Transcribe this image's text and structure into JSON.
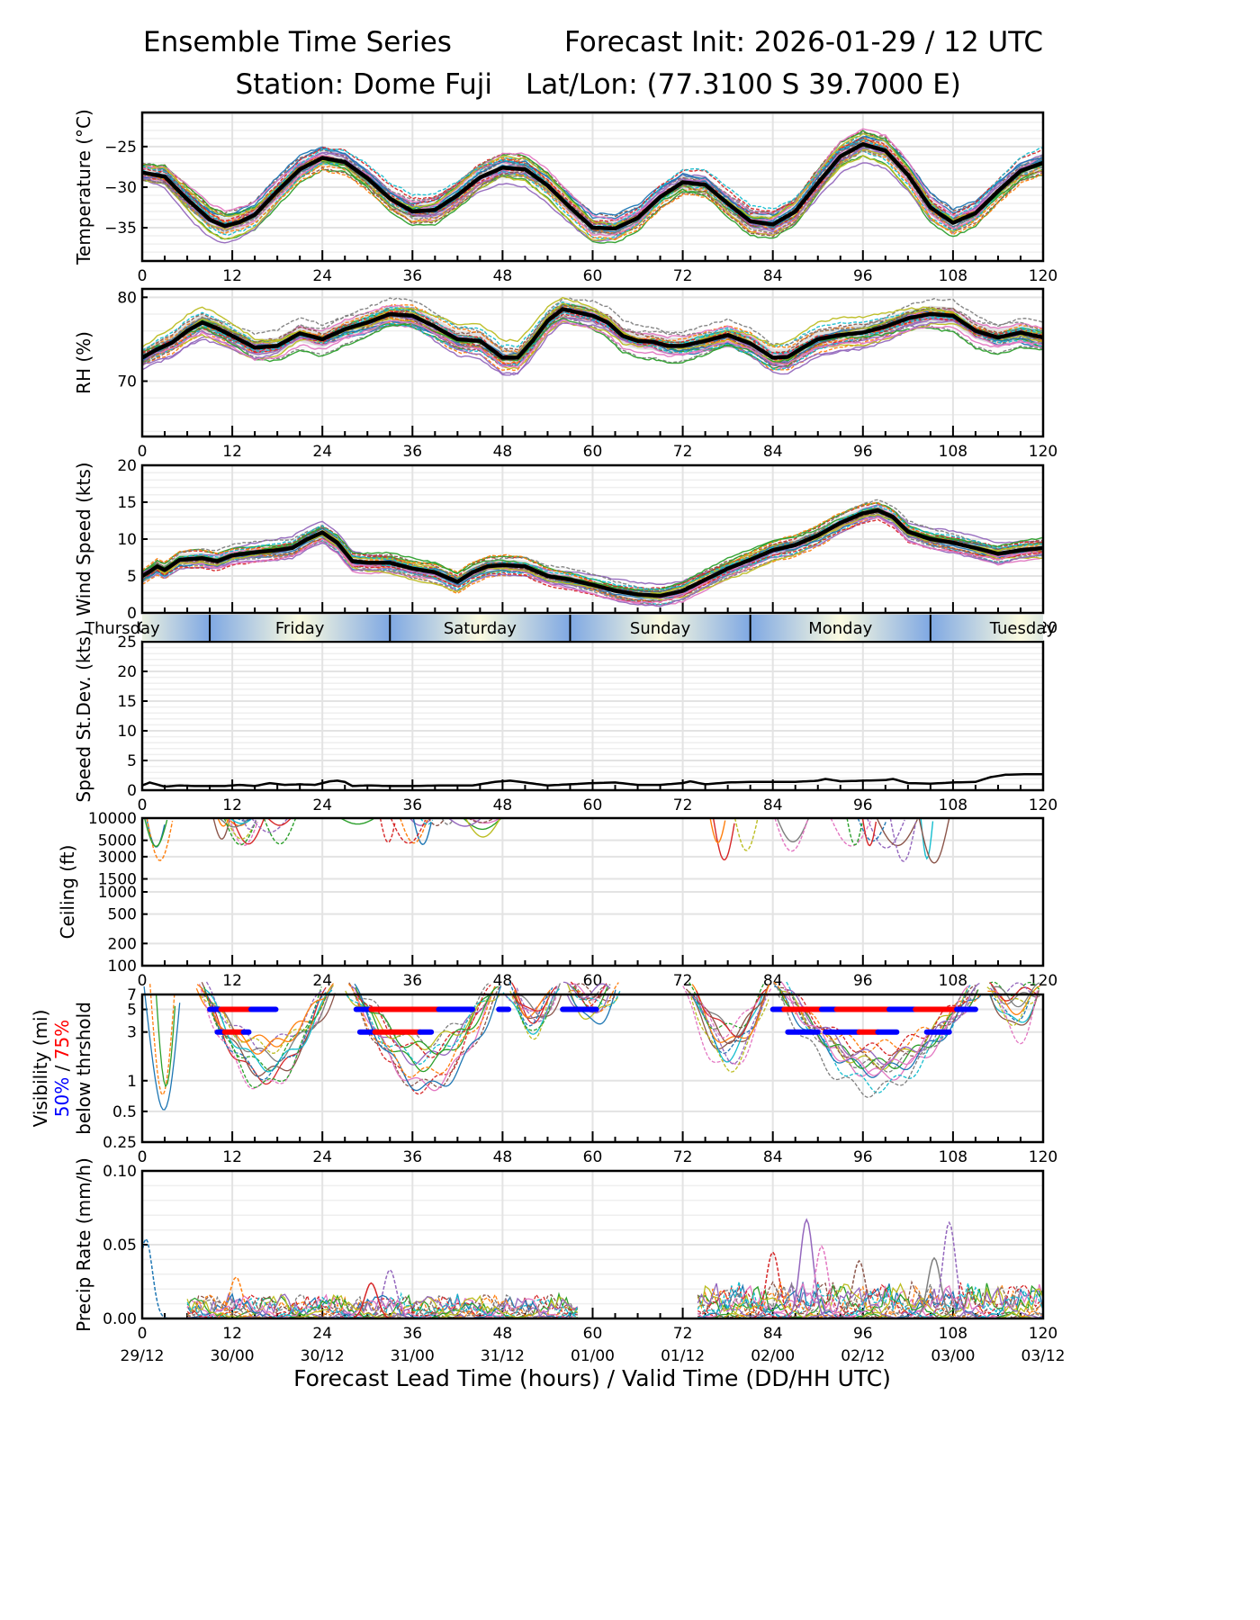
{
  "header": {
    "title_left": "Ensemble Time Series",
    "title_right": "Forecast Init: 2026-01-29 / 12 UTC",
    "station": "Station: Dome Fuji",
    "latlon": "Lat/Lon: (77.3100 S 39.7000 E)"
  },
  "xaxis": {
    "label": "Forecast Lead Time (hours) / Valid Time (DD/HH UTC)",
    "range": [
      0,
      120
    ],
    "ticks": [
      0,
      12,
      24,
      36,
      48,
      60,
      72,
      84,
      96,
      108,
      120
    ],
    "tick_labels": [
      "0",
      "12",
      "24",
      "36",
      "48",
      "60",
      "72",
      "84",
      "96",
      "108",
      "120"
    ],
    "valid_time_labels": [
      "29/12",
      "30/00",
      "30/12",
      "31/00",
      "31/12",
      "01/00",
      "01/12",
      "02/00",
      "02/12",
      "03/00",
      "03/12"
    ]
  },
  "day_band": {
    "days": [
      {
        "label": "Thursday",
        "start": -12,
        "end": 9
      },
      {
        "label": "Friday",
        "start": 9,
        "end": 33
      },
      {
        "label": "Saturday",
        "start": 33,
        "end": 57
      },
      {
        "label": "Sunday",
        "start": 57,
        "end": 81
      },
      {
        "label": "Monday",
        "start": 81,
        "end": 105
      },
      {
        "label": "Tuesday",
        "start": 105,
        "end": 129
      }
    ],
    "night_color": "#7fa8e3",
    "day_color": "#fbfbe0"
  },
  "colors": {
    "mean": "#000000",
    "spread": "#d9d9d9",
    "members": [
      "#1f77b4",
      "#ff7f0e",
      "#2ca02c",
      "#d62728",
      "#9467bd",
      "#8c564b",
      "#e377c2",
      "#7f7f7f",
      "#bcbd22",
      "#17becf"
    ],
    "vis_50": "#0000ff",
    "vis_75": "#ff0000"
  },
  "chart_data": [
    {
      "id": "temperature",
      "type": "line",
      "title": "",
      "ylabel": "Temperature (°C)",
      "xlabel": "",
      "ylim": [
        -39.1,
        -20.8
      ],
      "yticks": [
        -35,
        -30,
        -25
      ],
      "ytick_labels": [
        "−35",
        "−30",
        "−25"
      ],
      "grid": true,
      "ensemble_members": 30,
      "series": [
        {
          "name": "ensemble mean",
          "x": [
            0,
            3,
            6,
            9,
            11,
            13,
            15,
            18,
            21,
            24,
            27,
            30,
            33,
            36,
            39,
            42,
            45,
            48,
            51,
            54,
            57,
            60,
            63,
            66,
            69,
            72,
            75,
            78,
            81,
            84,
            87,
            90,
            93,
            96,
            99,
            102,
            105,
            108,
            111,
            114,
            117,
            120
          ],
          "values": [
            -28.2,
            -28.7,
            -31.5,
            -34.0,
            -34.8,
            -34.3,
            -33.4,
            -30.5,
            -27.8,
            -26.4,
            -26.9,
            -28.9,
            -31.4,
            -33.0,
            -32.8,
            -31.0,
            -28.8,
            -27.6,
            -27.8,
            -29.8,
            -32.5,
            -35.0,
            -35.1,
            -33.8,
            -31.2,
            -29.4,
            -29.7,
            -32.0,
            -34.2,
            -34.6,
            -33.0,
            -29.5,
            -26.2,
            -24.7,
            -25.5,
            -28.5,
            -32.5,
            -34.4,
            -33.2,
            -30.5,
            -28.0,
            -27.0
          ]
        }
      ],
      "spread_halfwidth": 1.0
    },
    {
      "id": "rh",
      "type": "line",
      "ylabel": "RH (%)",
      "ylim": [
        63.4,
        81.0
      ],
      "yticks": [
        70,
        80
      ],
      "ytick_labels": [
        "70",
        "80"
      ],
      "grid": true,
      "series": [
        {
          "name": "ensemble mean",
          "x": [
            0,
            2,
            4,
            6,
            8,
            10,
            12,
            15,
            18,
            21,
            24,
            27,
            30,
            33,
            36,
            39,
            42,
            45,
            48,
            50,
            52,
            54,
            56,
            58,
            60,
            62,
            64,
            66,
            68,
            70,
            72,
            75,
            78,
            81,
            84,
            86,
            88,
            90,
            93,
            96,
            99,
            102,
            105,
            108,
            111,
            114,
            117,
            120
          ],
          "values": [
            72.8,
            73.8,
            74.6,
            76.0,
            77.0,
            76.3,
            75.4,
            74.0,
            74.2,
            75.7,
            75.0,
            76.2,
            77.0,
            78.0,
            77.8,
            76.5,
            75.0,
            74.8,
            72.8,
            72.8,
            74.8,
            77.2,
            78.6,
            78.2,
            77.8,
            77.0,
            75.4,
            74.8,
            74.7,
            74.2,
            74.2,
            74.8,
            75.5,
            74.5,
            72.8,
            72.9,
            74.0,
            75.0,
            75.5,
            75.8,
            76.5,
            77.5,
            78.0,
            77.8,
            76.0,
            75.2,
            75.8,
            75.2
          ]
        }
      ],
      "spread_halfwidth": 1.0
    },
    {
      "id": "wind_speed",
      "type": "line",
      "ylabel": "Wind Speed (kts)",
      "ylim": [
        0,
        20
      ],
      "yticks": [
        0,
        5,
        10,
        15,
        20
      ],
      "ytick_labels": [
        "0",
        "5",
        "10",
        "15",
        "20"
      ],
      "grid": true,
      "series": [
        {
          "name": "ensemble mean",
          "x": [
            0,
            1,
            2,
            3,
            5,
            8,
            10,
            12,
            15,
            18,
            20,
            22,
            24,
            26,
            28,
            30,
            33,
            36,
            39,
            42,
            44,
            46,
            48,
            51,
            54,
            57,
            60,
            63,
            66,
            69,
            72,
            75,
            78,
            81,
            84,
            87,
            90,
            93,
            96,
            98,
            100,
            102,
            105,
            108,
            111,
            114,
            117,
            120
          ],
          "values": [
            5.0,
            5.6,
            6.3,
            5.8,
            7.2,
            7.4,
            7.0,
            7.8,
            8.2,
            8.5,
            8.8,
            10.0,
            10.9,
            9.5,
            7.0,
            6.8,
            6.8,
            6.0,
            5.5,
            4.2,
            5.5,
            6.3,
            6.5,
            6.3,
            5.0,
            4.5,
            3.8,
            3.0,
            2.5,
            2.3,
            3.0,
            4.5,
            6.0,
            7.2,
            8.5,
            9.2,
            10.5,
            12.2,
            13.5,
            13.9,
            13.0,
            11.0,
            10.0,
            9.5,
            8.8,
            8.0,
            8.5,
            8.8
          ]
        }
      ],
      "spread_halfwidth": 0.8
    },
    {
      "id": "speed_stdev",
      "type": "line",
      "ylabel": "Speed St.Dev. (kts)",
      "ylim": [
        0,
        25
      ],
      "yticks": [
        0,
        5,
        10,
        15,
        20,
        25
      ],
      "ytick_labels": [
        "0",
        "5",
        "10",
        "15",
        "20",
        "25"
      ],
      "grid": true,
      "series": [
        {
          "name": "speed standard deviation",
          "x": [
            0,
            1,
            3,
            5,
            7,
            9,
            11,
            13,
            15,
            17,
            19,
            21,
            23,
            25,
            26,
            27,
            28,
            30,
            33,
            36,
            40,
            44,
            47,
            49,
            51,
            54,
            57,
            60,
            63,
            66,
            69,
            72,
            73,
            75,
            78,
            81,
            84,
            87,
            90,
            91,
            93,
            96,
            99,
            100,
            102,
            105,
            108,
            111,
            113,
            115,
            118,
            120
          ],
          "values": [
            0.8,
            1.3,
            0.6,
            0.8,
            0.7,
            0.7,
            0.7,
            0.9,
            0.7,
            1.2,
            0.9,
            1.0,
            0.9,
            1.5,
            1.6,
            1.4,
            0.7,
            0.8,
            0.7,
            0.7,
            0.8,
            0.8,
            1.4,
            1.6,
            1.3,
            0.8,
            1.0,
            1.2,
            1.3,
            0.9,
            0.9,
            1.2,
            1.5,
            1.0,
            1.3,
            1.4,
            1.4,
            1.4,
            1.6,
            1.9,
            1.5,
            1.6,
            1.7,
            1.9,
            1.2,
            1.1,
            1.3,
            1.4,
            2.2,
            2.6,
            2.7,
            2.7
          ]
        }
      ]
    },
    {
      "id": "ceiling",
      "type": "line",
      "ylabel": "Ceiling (ft)",
      "yscale": "log",
      "ylim": [
        100,
        10000
      ],
      "yticks": [
        100,
        200,
        500,
        1000,
        1500,
        3000,
        5000,
        10000
      ],
      "ytick_labels": [
        "100",
        "200",
        "500",
        "1000",
        "1500",
        "3000",
        "5000",
        "10000"
      ],
      "grid": true,
      "events": [
        {
          "name": "early dip",
          "x_range": [
            0,
            3
          ],
          "min_value": 2200
        },
        {
          "name": "hour 12 cluster",
          "x_range": [
            9,
            19
          ],
          "min_value": 4200
        },
        {
          "name": "hour 30 cluster",
          "x_range": [
            26,
            48
          ],
          "min_value": 4000
        },
        {
          "name": "hour 84-108 cluster",
          "x_range": [
            74,
            109
          ],
          "min_value": 2300
        }
      ]
    },
    {
      "id": "visibility",
      "type": "line",
      "ylabel": "Visibility (mi)",
      "ylabel_line2_blue": "50%",
      "ylabel_line2_sep": " / ",
      "ylabel_line2_red": "75%",
      "ylabel_line3": "below thrshold",
      "yscale": "log",
      "ylim": [
        0.25,
        7
      ],
      "yticks": [
        0.25,
        0.5,
        1,
        3,
        5,
        7
      ],
      "ytick_labels": [
        "0.25",
        "0.5",
        "1",
        "3",
        "5",
        "7"
      ],
      "grid": true,
      "threshold_bars": [
        {
          "threshold": 5,
          "segments": [
            {
              "start": 9.0,
              "end": 10.5,
              "level": "50%"
            },
            {
              "start": 10.5,
              "end": 14.5,
              "level": "75%"
            },
            {
              "start": 14.5,
              "end": 17.8,
              "level": "50%"
            },
            {
              "start": 28.5,
              "end": 30.5,
              "level": "50%"
            },
            {
              "start": 30.5,
              "end": 39.5,
              "level": "75%"
            },
            {
              "start": 39.5,
              "end": 44.0,
              "level": "50%"
            },
            {
              "start": 47.5,
              "end": 48.8,
              "level": "50%"
            },
            {
              "start": 56.0,
              "end": 60.5,
              "level": "50%"
            },
            {
              "start": 84.0,
              "end": 85.5,
              "level": "50%"
            },
            {
              "start": 85.5,
              "end": 90.5,
              "level": "75%"
            },
            {
              "start": 90.5,
              "end": 92.5,
              "level": "50%"
            },
            {
              "start": 92.5,
              "end": 99.5,
              "level": "75%"
            },
            {
              "start": 99.5,
              "end": 103.0,
              "level": "50%"
            },
            {
              "start": 103.0,
              "end": 108.5,
              "level": "75%"
            },
            {
              "start": 108.5,
              "end": 111.0,
              "level": "50%"
            }
          ]
        },
        {
          "threshold": 3,
          "segments": [
            {
              "start": 10.0,
              "end": 11.0,
              "level": "50%"
            },
            {
              "start": 11.0,
              "end": 13.5,
              "level": "75%"
            },
            {
              "start": 13.5,
              "end": 14.2,
              "level": "50%"
            },
            {
              "start": 29.0,
              "end": 31.0,
              "level": "50%"
            },
            {
              "start": 31.0,
              "end": 37.0,
              "level": "75%"
            },
            {
              "start": 37.0,
              "end": 38.5,
              "level": "50%"
            },
            {
              "start": 86.0,
              "end": 90.0,
              "level": "50%"
            },
            {
              "start": 91.0,
              "end": 92.2,
              "level": "50%"
            },
            {
              "start": 92.5,
              "end": 95.5,
              "level": "50%"
            },
            {
              "start": 95.5,
              "end": 98.0,
              "level": "75%"
            },
            {
              "start": 98.0,
              "end": 100.5,
              "level": "50%"
            },
            {
              "start": 104.5,
              "end": 107.5,
              "level": "50%"
            }
          ]
        }
      ]
    },
    {
      "id": "precip_rate",
      "type": "line",
      "ylabel": "Precip Rate (mm/h)",
      "ylim": [
        0,
        0.1
      ],
      "yticks": [
        0.0,
        0.05,
        0.1
      ],
      "ytick_labels": [
        "0.00",
        "0.05",
        "0.10"
      ],
      "grid": true,
      "peaks": [
        {
          "x": 0.5,
          "value": 0.054,
          "member_color": "#1f77b4",
          "dashed": true
        },
        {
          "x": 12.5,
          "value": 0.028,
          "member_color": "#ff7f0e",
          "dashed": true
        },
        {
          "x": 33.0,
          "value": 0.033,
          "member_color": "#9467bd",
          "dashed": true
        },
        {
          "x": 30.5,
          "value": 0.024,
          "member_color": "#d62728",
          "dashed": false
        },
        {
          "x": 84.0,
          "value": 0.045,
          "member_color": "#d62728",
          "dashed": true
        },
        {
          "x": 88.5,
          "value": 0.067,
          "member_color": "#9467bd",
          "dashed": false
        },
        {
          "x": 90.5,
          "value": 0.049,
          "member_color": "#e377c2",
          "dashed": true
        },
        {
          "x": 95.5,
          "value": 0.039,
          "member_color": "#8c564b",
          "dashed": true
        },
        {
          "x": 105.5,
          "value": 0.041,
          "member_color": "#7f7f7f",
          "dashed": false
        },
        {
          "x": 107.5,
          "value": 0.065,
          "member_color": "#9467bd",
          "dashed": true
        }
      ]
    }
  ]
}
